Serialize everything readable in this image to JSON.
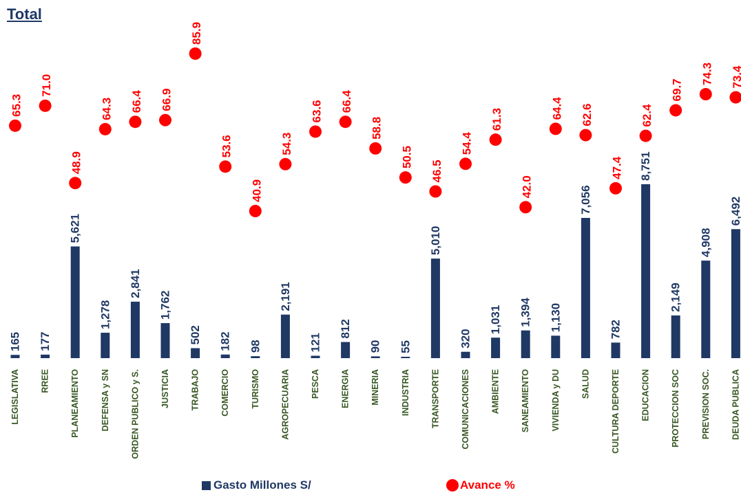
{
  "chart_data": {
    "type": "bar",
    "title": "Total",
    "categories": [
      "LEGISLATIVA",
      "RREE",
      "PLANEAMIENTO",
      "DEFENSA y SN",
      "ORDEN PUBLICO y S.",
      "JUSTICIA",
      "TRABAJO",
      "COMERCIO",
      "TURISMO",
      "AGROPECUARIA",
      "PESCA",
      "ENERGIA",
      "MINERIA",
      "INDUSTRIA",
      "TRANSPORTE",
      "COMUNICACIONES",
      "AMBIENTE",
      "SANEAMIENTO",
      "VIVIENDA y DU",
      "SALUD",
      "CULTURA DEPORTE",
      "EDUCACION",
      "PROTECCION SOC",
      "PREVISION SOC.",
      "DEUDA PUBLICA"
    ],
    "series": [
      {
        "name": "Gasto Millones S/",
        "type": "bar",
        "color": "#1f3864",
        "values": [
          165,
          177,
          5621,
          1278,
          2841,
          1762,
          502,
          182,
          98,
          2191,
          121,
          812,
          90,
          55,
          5010,
          320,
          1031,
          1394,
          1130,
          7056,
          782,
          8751,
          2149,
          4908,
          6492
        ],
        "labels": [
          "165",
          "177",
          "5,621",
          "1,278",
          "2,841",
          "1,762",
          "502",
          "182",
          "98",
          "2,191",
          "121",
          "812",
          "90",
          "55",
          "5,010",
          "320",
          "1,031",
          "1,394",
          "1,130",
          "7,056",
          "782",
          "8,751",
          "2,149",
          "4,908",
          "6,492"
        ]
      },
      {
        "name": "Avance %",
        "type": "scatter",
        "color": "#ff0000",
        "values": [
          65.3,
          71.0,
          48.9,
          64.3,
          66.4,
          66.9,
          85.9,
          53.6,
          40.9,
          54.3,
          63.6,
          66.4,
          58.8,
          50.5,
          46.5,
          54.4,
          61.3,
          42.0,
          64.4,
          62.6,
          47.4,
          62.4,
          69.7,
          74.3,
          73.4
        ],
        "labels": [
          "65.3",
          "71.0",
          "48.9",
          "64.3",
          "66.4",
          "66.9",
          "85.9",
          "53.6",
          "40.9",
          "54.3",
          "63.6",
          "66.4",
          "58.8",
          "50.5",
          "46.5",
          "54.4",
          "61.3",
          "42.0",
          "64.4",
          "62.6",
          "47.4",
          "62.4",
          "69.7",
          "74.3",
          "73.4"
        ]
      }
    ],
    "legend": "bottom",
    "grid": false,
    "category_label_color": "#385723"
  }
}
